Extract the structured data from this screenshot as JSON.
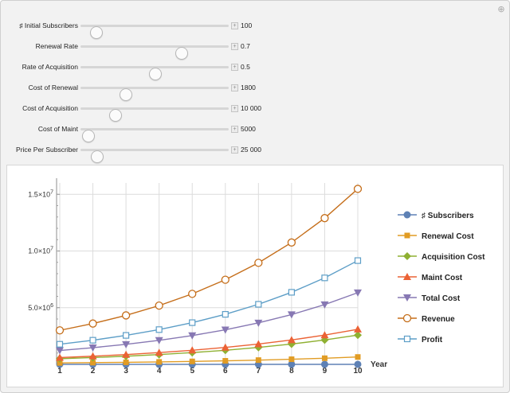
{
  "controls": [
    {
      "label": "♯ Initial Subscribers",
      "value": "100",
      "level": 0.1
    },
    {
      "label": "Renewal Rate",
      "value": "0.7",
      "level": 0.68
    },
    {
      "label": "Rate of Acquisition",
      "value": "0.5",
      "level": 0.5
    },
    {
      "label": "Cost of Renewal",
      "value": "1800",
      "level": 0.3
    },
    {
      "label": "Cost of Acquisition",
      "value": "10 000",
      "level": 0.23
    },
    {
      "label": "Cost of Maint",
      "value": "5000",
      "level": 0.05
    },
    {
      "label": "Price Per Subscriber",
      "value": "25 000",
      "level": 0.11
    }
  ],
  "chart_data": {
    "type": "line",
    "xlabel": "Year",
    "ylabel": "",
    "x": [
      1,
      2,
      3,
      4,
      5,
      6,
      7,
      8,
      9,
      10
    ],
    "xlim": [
      1,
      10
    ],
    "ylim": [
      0,
      16000000
    ],
    "y_ticks": [
      {
        "value": 5000000,
        "mant": "5.0",
        "exp": "6"
      },
      {
        "value": 10000000,
        "mant": "1.0",
        "exp": "7"
      },
      {
        "value": 15000000,
        "mant": "1.5",
        "exp": "7"
      }
    ],
    "grid": true,
    "legend": "right",
    "series": [
      {
        "name": "♯ Subscribers",
        "color": "#5e81b5",
        "marker": "circle",
        "values": [
          120,
          144,
          173,
          207,
          249,
          299,
          358,
          430,
          516,
          619
        ]
      },
      {
        "name": "Renewal Cost",
        "color": "#e19c24",
        "marker": "square",
        "values": [
          126000,
          151200,
          181440,
          217728,
          261274,
          313528,
          376234,
          451481,
          541777,
          650132
        ]
      },
      {
        "name": "Acquisition Cost",
        "color": "#8fb032",
        "marker": "diamond",
        "values": [
          500000,
          600000,
          720000,
          864000,
          1036800,
          1244160,
          1492992,
          1791590,
          2149908,
          2579890
        ]
      },
      {
        "name": "Maint Cost",
        "color": "#eb6235",
        "marker": "triangle-up",
        "values": [
          600000,
          720000,
          864000,
          1036800,
          1244160,
          1492992,
          1791590,
          2149908,
          2579890,
          3095868
        ]
      },
      {
        "name": "Total Cost",
        "color": "#8778b3",
        "marker": "triangle-down",
        "values": [
          1226000,
          1471200,
          1765440,
          2118528,
          2542234,
          3050680,
          3660816,
          4392979,
          5271575,
          6325890
        ]
      },
      {
        "name": "Revenue",
        "color": "#c56e1a",
        "marker": "open-circle",
        "values": [
          3000000,
          3600000,
          4320000,
          5184000,
          6220800,
          7464960,
          8957952,
          10749542,
          12899451,
          15479341
        ]
      },
      {
        "name": "Profit",
        "color": "#5d9ec7",
        "marker": "open-square",
        "values": [
          1774000,
          2128800,
          2554560,
          3065472,
          3678566,
          4414280,
          5297136,
          6356563,
          7627876,
          9153451
        ]
      }
    ]
  }
}
